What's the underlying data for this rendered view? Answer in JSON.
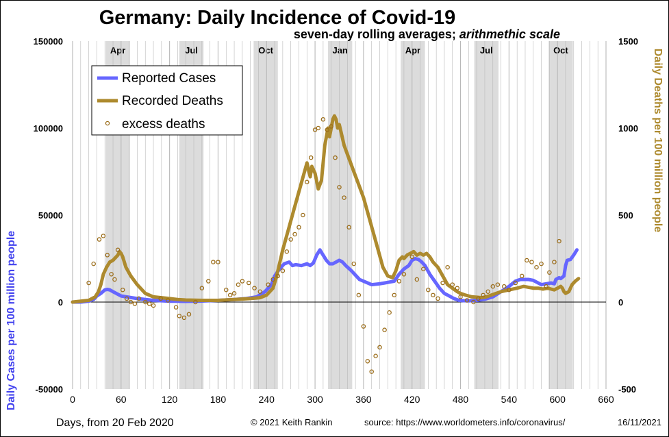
{
  "chart_data": {
    "type": "line",
    "title": "Germany: Daily Incidence of Covid-19",
    "subtitle_main": "seven-day rolling averages; ",
    "subtitle_italic": "arithmethic scale",
    "xlabel": "Days, from 20 Feb 2020",
    "ylabel_left": "Daily Cases per 100 million people",
    "ylabel_right": "Daily Deaths per 100 million people",
    "credit": "© 2021  Keith Rankin",
    "source": "source:  https://www.worldometers.info/coronavirus/",
    "date": "16/11/2021",
    "xlim": [
      0,
      660
    ],
    "ylim_left": [
      -50000,
      150000
    ],
    "ylim_right": [
      -500,
      1500
    ],
    "x_ticks": [
      "0",
      "60",
      "120",
      "180",
      "240",
      "300",
      "360",
      "420",
      "480",
      "540",
      "600",
      "660"
    ],
    "y_ticks_left": [
      "150000",
      "100000",
      "50000",
      "0",
      "-50000"
    ],
    "y_ticks_right": [
      "1500",
      "1000",
      "500",
      "0",
      "-500"
    ],
    "legend_position": "top-left",
    "shaded_quarters": [
      {
        "label": "Apr",
        "start": 41,
        "end": 71
      },
      {
        "label": "Jul",
        "start": 132,
        "end": 162
      },
      {
        "label": "Oct",
        "start": 224,
        "end": 254
      },
      {
        "label": "Jan",
        "start": 316,
        "end": 346
      },
      {
        "label": "Apr",
        "start": 406,
        "end": 436
      },
      {
        "label": "Jul",
        "start": 497,
        "end": 527
      },
      {
        "label": "Oct",
        "start": 589,
        "end": 619
      }
    ],
    "series": [
      {
        "name": "Reported Cases",
        "axis": "left",
        "color": "#6666ff",
        "x": [
          0,
          10,
          20,
          26,
          30,
          35,
          40,
          43,
          46,
          50,
          60,
          80,
          100,
          120,
          140,
          160,
          180,
          200,
          215,
          228,
          238,
          246,
          250,
          256,
          262,
          268,
          272,
          276,
          283,
          290,
          294,
          298,
          302,
          306,
          310,
          314,
          318,
          322,
          326,
          330,
          334,
          338,
          345,
          355,
          370,
          380,
          386,
          392,
          398,
          404,
          410,
          416,
          420,
          424,
          428,
          432,
          436,
          442,
          448,
          454,
          460,
          466,
          472,
          478,
          484,
          490,
          500,
          510,
          520,
          530,
          540,
          548,
          554,
          558,
          564,
          570,
          574,
          580,
          586,
          592,
          596,
          598,
          600,
          602,
          604,
          608,
          610,
          612,
          616,
          620,
          624
        ],
        "y": [
          0,
          0,
          500,
          1500,
          3500,
          5000,
          7000,
          7300,
          7000,
          6000,
          3500,
          2000,
          1000,
          500,
          400,
          600,
          1000,
          1500,
          2000,
          3000,
          6000,
          10000,
          15000,
          19000,
          22000,
          23000,
          21000,
          21500,
          21000,
          22000,
          21000,
          22500,
          27000,
          30000,
          27000,
          24000,
          22000,
          22000,
          23000,
          24000,
          23000,
          21000,
          18000,
          13000,
          10000,
          10500,
          11000,
          11500,
          12000,
          16000,
          19000,
          21000,
          24000,
          25000,
          24500,
          23000,
          21000,
          16000,
          12000,
          8000,
          5000,
          3500,
          2000,
          1000,
          800,
          700,
          1000,
          1600,
          3000,
          6000,
          9000,
          12000,
          13000,
          13000,
          13000,
          12500,
          11500,
          10000,
          10500,
          11000,
          10500,
          13000,
          13500,
          14000,
          13500,
          15000,
          21000,
          24000,
          24500,
          27000,
          30000
        ]
      },
      {
        "name": "Recorded Deaths",
        "axis": "right",
        "color": "#ad8a2e",
        "x": [
          0,
          20,
          28,
          32,
          35,
          38,
          42,
          46,
          50,
          54,
          56,
          58,
          60,
          62,
          66,
          72,
          80,
          90,
          100,
          110,
          120,
          130,
          140,
          160,
          180,
          200,
          220,
          232,
          240,
          248,
          252,
          256,
          260,
          266,
          272,
          278,
          284,
          290,
          294,
          296,
          300,
          304,
          308,
          312,
          316,
          318,
          320,
          322,
          324,
          326,
          328,
          330,
          332,
          336,
          340,
          344,
          348,
          352,
          356,
          360,
          366,
          372,
          378,
          384,
          390,
          396,
          400,
          404,
          408,
          410,
          414,
          418,
          422,
          426,
          430,
          434,
          438,
          442,
          446,
          452,
          458,
          464,
          470,
          476,
          480,
          486,
          490,
          494,
          500,
          506,
          512,
          518,
          524,
          530,
          540,
          550,
          558,
          564,
          570,
          576,
          582,
          588,
          592,
          596,
          600,
          602,
          604,
          606,
          608,
          610,
          614,
          618,
          622,
          626
        ],
        "y": [
          0,
          10,
          30,
          60,
          100,
          160,
          200,
          230,
          240,
          260,
          270,
          290,
          280,
          260,
          200,
          150,
          100,
          50,
          30,
          25,
          20,
          15,
          12,
          10,
          10,
          15,
          20,
          25,
          40,
          80,
          140,
          220,
          300,
          400,
          500,
          600,
          700,
          800,
          720,
          780,
          740,
          650,
          700,
          900,
          1000,
          950,
          1000,
          1050,
          1070,
          1050,
          1000,
          1020,
          980,
          900,
          850,
          800,
          750,
          700,
          650,
          600,
          500,
          400,
          300,
          200,
          150,
          140,
          180,
          240,
          260,
          250,
          270,
          280,
          290,
          270,
          280,
          270,
          280,
          260,
          230,
          200,
          150,
          100,
          80,
          60,
          50,
          40,
          35,
          30,
          28,
          25,
          30,
          40,
          50,
          60,
          70,
          80,
          90,
          85,
          80,
          80,
          75,
          80,
          75,
          70,
          80,
          85,
          90,
          80,
          60,
          50,
          60,
          100,
          120,
          135
        ]
      },
      {
        "name": "excess deaths",
        "axis": "right",
        "color": "#9b6d1a",
        "marker": "circle",
        "x": [
          20,
          26,
          33,
          38,
          43,
          48,
          52,
          56,
          62,
          67,
          72,
          77,
          82,
          90,
          95,
          100,
          109,
          118,
          128,
          132,
          138,
          144,
          152,
          160,
          168,
          174,
          180,
          190,
          195,
          200,
          205,
          210,
          218,
          225,
          232,
          242,
          248,
          254,
          260,
          265,
          270,
          275,
          280,
          285,
          290,
          295,
          300,
          304,
          310,
          315,
          320,
          325,
          330,
          336,
          342,
          348,
          354,
          360,
          365,
          370,
          375,
          380,
          386,
          392,
          398,
          404,
          410,
          420,
          426,
          434,
          440,
          446,
          452,
          458,
          464,
          470,
          476,
          480,
          488,
          496,
          502,
          508,
          514,
          520,
          526,
          534,
          540,
          548,
          556,
          562,
          568,
          574,
          580,
          586,
          590,
          596,
          602
        ],
        "y": [
          110,
          220,
          360,
          380,
          270,
          160,
          130,
          300,
          70,
          20,
          0,
          -10,
          20,
          0,
          -10,
          -20,
          20,
          10,
          -30,
          -80,
          -90,
          -70,
          0,
          80,
          120,
          230,
          230,
          70,
          40,
          50,
          100,
          120,
          110,
          80,
          60,
          100,
          130,
          150,
          180,
          290,
          360,
          390,
          430,
          500,
          690,
          830,
          990,
          1000,
          1050,
          990,
          1010,
          830,
          660,
          600,
          430,
          220,
          40,
          -140,
          -340,
          -400,
          -310,
          -260,
          -160,
          -60,
          40,
          120,
          160,
          260,
          130,
          190,
          70,
          40,
          20,
          110,
          200,
          100,
          80,
          30,
          10,
          0,
          20,
          40,
          60,
          90,
          100,
          90,
          70,
          110,
          150,
          240,
          230,
          200,
          220,
          90,
          170,
          230,
          350
        ]
      }
    ]
  }
}
